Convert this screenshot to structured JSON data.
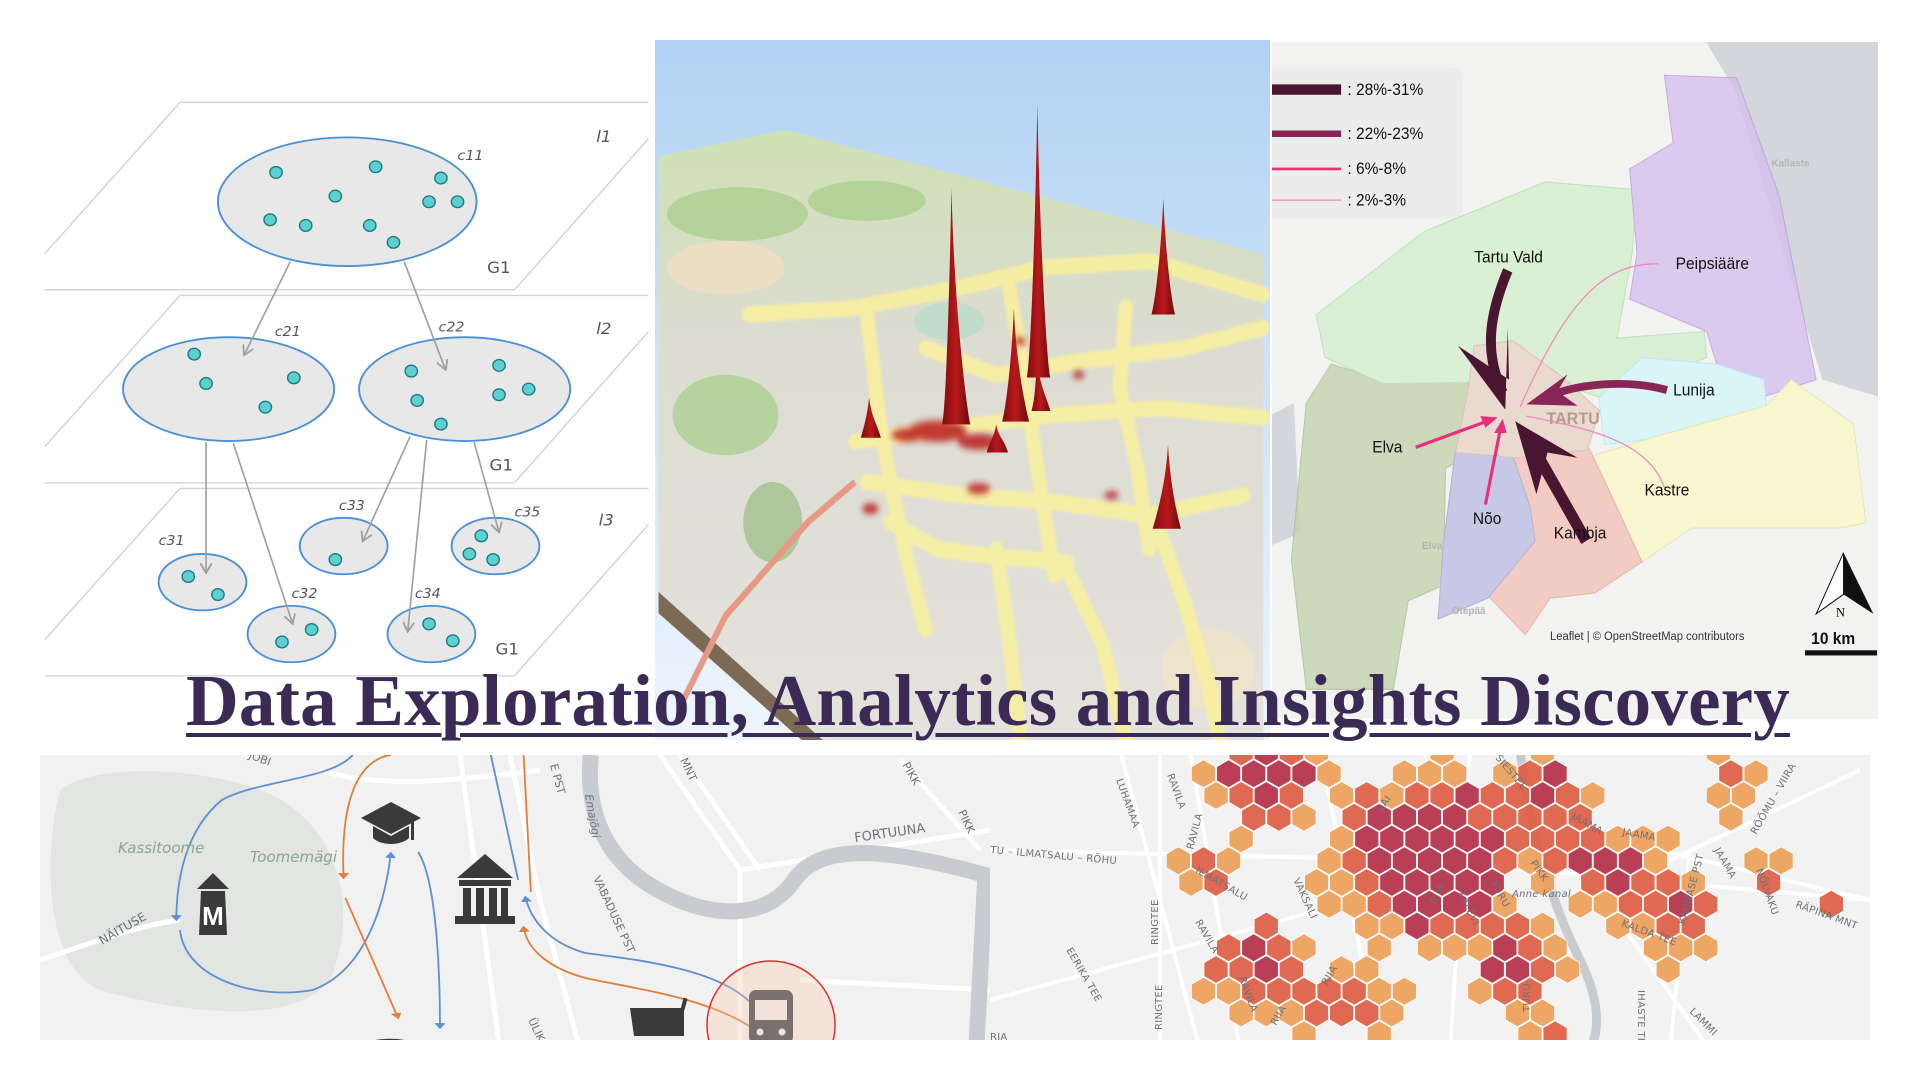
{
  "title": "Data Exploration, Analytics and Insights Discovery",
  "diagram": {
    "clusters": [
      "c11",
      "c21",
      "c22",
      "c31",
      "c32",
      "c33",
      "c34",
      "c35"
    ],
    "levels": [
      "l1",
      "l2",
      "l3"
    ],
    "graph_labels": [
      "G1",
      "G1",
      "G1"
    ]
  },
  "flow_map": {
    "legend": [
      ": 28%-31%",
      ": 22%-23%",
      ": 6%-8%",
      ": 2%-3%"
    ],
    "regions": [
      "Tartu Vald",
      "Peipsiääre",
      "Lunija",
      "Elva",
      "Nõo",
      "Kambja",
      "Kastre"
    ],
    "city_label": "TARTU",
    "place_labels": [
      "Kallaste",
      "Elva",
      "Otepää"
    ],
    "north": "N",
    "scale": "10 km",
    "attribution": "Leaflet | © OpenStreetMap contributors",
    "colors": {
      "high": "#4a1530",
      "mid": "#8a2558",
      "low": "#e8307a",
      "lowest": "#f08ab8"
    }
  },
  "poi_map": {
    "labels": [
      "Kassitoome",
      "Toomemägi",
      "NÄITUSE",
      "FORTUUNA",
      "VABADUSE PST",
      "Emajõgi",
      "MNT",
      "PIKK",
      "PIKK",
      "E PST",
      "ÜLIK",
      "JOBI"
    ],
    "icons": [
      "graduation-cap-icon",
      "museum-m-icon",
      "museum-building-icon",
      "bus-icon",
      "shopping-cart-icon"
    ]
  },
  "hex_map": {
    "labels": [
      "LUHAMAA",
      "RAVILA",
      "TU – ILMATSALU – RÕHU",
      "RAVILA",
      "ILMATSALU",
      "VAKSALI",
      "RINGTEE",
      "EERIKA TEE",
      "RAVILA",
      "RIIA",
      "KALEVI",
      "TURU",
      "PIKK",
      "Anne kanal",
      "LAI",
      "JAAMA",
      "JAAMA",
      "JAAMA",
      "KAUNASE PST",
      "KALDA TEE",
      "RÕÕMU – VIIRA",
      "NÕLVAKU",
      "RÄPINA MNT",
      "RIIA",
      "RIIA",
      "RAVILA",
      "TURU",
      "IHASTE TEE",
      "LAMMI",
      "RINGTEE",
      "RJA",
      "SIESTEE"
    ],
    "colors": {
      "high": "#b5304a",
      "mid": "#df5e45",
      "low": "#eea05a"
    }
  }
}
